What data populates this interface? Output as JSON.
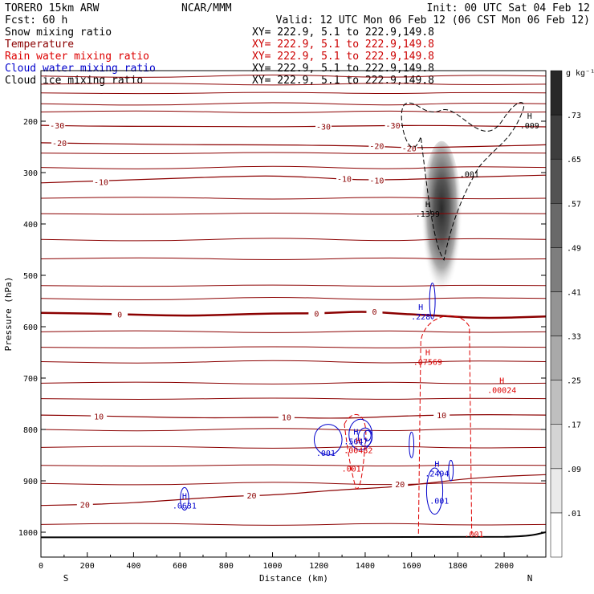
{
  "header": {
    "model": "TORERO  15km ARW",
    "fcst": "Fcst:   60 h",
    "center": "NCAR/MMM",
    "init": "Init: 00 UTC Sat 04 Feb 12",
    "valid": "Valid: 12 UTC Mon 06 Feb 12 (06 CST Mon 06 Feb 12)"
  },
  "fields": [
    {
      "name": "Snow mixing ratio",
      "color": "#000000",
      "xy": "XY= 222.9,  5.1 to 222.9,149.8"
    },
    {
      "name": "Temperature",
      "color": "#8b0000",
      "xy": "XY= 222.9,  5.1 to 222.9,149.8"
    },
    {
      "name": "Rain water mixing ratio",
      "color": "#dd0000",
      "xy": "XY= 222.9,  5.1 to 222.9,149.8"
    },
    {
      "name": "Cloud water mixing ratio",
      "color": "#0000cc",
      "xy": "XY= 222.9,  5.1 to 222.9,149.8"
    },
    {
      "name": "Cloud ice mixing ratio",
      "color": "#000000",
      "xy": "XY= 222.9,  5.1 to 222.9,149.8"
    }
  ],
  "chart_data": {
    "type": "cross-section",
    "xlabel": "Distance (km)",
    "ylabel": "Pressure (hPa)",
    "x_ticks": [
      "0",
      "200",
      "400",
      "600",
      "800",
      "1000",
      "1200",
      "1400",
      "1600",
      "1800",
      "2000"
    ],
    "y_ticks": [
      "200",
      "300",
      "400",
      "500",
      "600",
      "700",
      "800",
      "900",
      "1000"
    ],
    "xlim": [
      0,
      2180
    ],
    "ylim_hpa": [
      1050,
      100
    ],
    "endpoints": {
      "left": "S",
      "right": "N"
    },
    "colorbar": {
      "unit": "g kg⁻¹",
      "ticks": [
        ".01",
        ".09",
        ".17",
        ".25",
        ".33",
        ".41",
        ".49",
        ".57",
        ".65",
        ".73"
      ]
    },
    "isotherms": [
      {
        "label": "-30",
        "points": [
          [
            0,
            208
          ],
          [
            300,
            210
          ],
          [
            700,
            210
          ],
          [
            1000,
            211
          ],
          [
            1400,
            209
          ],
          [
            1700,
            208
          ],
          [
            2000,
            210
          ],
          [
            2180,
            211
          ]
        ],
        "labels_at": [
          [
            70,
            208
          ],
          [
            1220,
            210
          ],
          [
            1520,
            208
          ]
        ]
      },
      {
        "label": "-20",
        "points": [
          [
            0,
            242
          ],
          [
            300,
            244
          ],
          [
            700,
            246
          ],
          [
            1000,
            246
          ],
          [
            1400,
            248
          ],
          [
            1600,
            252
          ],
          [
            1800,
            250
          ],
          [
            2000,
            248
          ],
          [
            2180,
            246
          ]
        ],
        "labels_at": [
          [
            80,
            242
          ],
          [
            1450,
            248
          ],
          [
            1590,
            252
          ]
        ]
      },
      {
        "label": "-10",
        "points": [
          [
            0,
            320
          ],
          [
            400,
            314
          ],
          [
            800,
            308
          ],
          [
            1000,
            306
          ],
          [
            1200,
            310
          ],
          [
            1400,
            315
          ],
          [
            1700,
            312
          ],
          [
            1900,
            308
          ],
          [
            2180,
            305
          ]
        ],
        "labels_at": [
          [
            260,
            318
          ],
          [
            1310,
            312
          ],
          [
            1450,
            315
          ]
        ]
      },
      {
        "label": "0",
        "points": [
          [
            0,
            573
          ],
          [
            300,
            575
          ],
          [
            600,
            579
          ],
          [
            800,
            577
          ],
          [
            1000,
            574
          ],
          [
            1200,
            574
          ],
          [
            1400,
            570
          ],
          [
            1550,
            575
          ],
          [
            1700,
            578
          ],
          [
            1900,
            584
          ],
          [
            2180,
            580
          ]
        ],
        "labels_at": [
          [
            340,
            576
          ],
          [
            1190,
            574
          ],
          [
            1440,
            570
          ]
        ]
      },
      {
        "label": "10",
        "points": [
          [
            0,
            772
          ],
          [
            300,
            774
          ],
          [
            700,
            778
          ],
          [
            1000,
            776
          ],
          [
            1300,
            779
          ],
          [
            1600,
            773
          ],
          [
            1900,
            771
          ],
          [
            2180,
            772
          ]
        ],
        "labels_at": [
          [
            250,
            774
          ],
          [
            1060,
            776
          ],
          [
            1730,
            772
          ]
        ]
      },
      {
        "label": "20",
        "points": [
          [
            0,
            948
          ],
          [
            300,
            945
          ],
          [
            500,
            940
          ],
          [
            800,
            930
          ],
          [
            1000,
            928
          ],
          [
            1300,
            917
          ],
          [
            1500,
            913
          ],
          [
            1700,
            903
          ],
          [
            1900,
            893
          ],
          [
            2180,
            888
          ]
        ],
        "labels_at": [
          [
            190,
            946
          ],
          [
            910,
            928
          ],
          [
            1550,
            906
          ]
        ]
      }
    ],
    "extremes": [
      {
        "field": "Snow mixing ratio",
        "kind": "H",
        "value": ".1399",
        "x": 1670,
        "p": 380
      },
      {
        "field": "Cloud ice mixing ratio",
        "kind": "H",
        "value": ".009",
        "x": 2110,
        "p": 208
      },
      {
        "field": "Cloud ice mixing ratio",
        "kind": "min",
        "value": ".001",
        "x": 1850,
        "p": 302
      },
      {
        "field": "Cloud water mixing ratio",
        "kind": "H",
        "value": ".228",
        "x": 1640,
        "p": 580
      },
      {
        "field": "Cloud water mixing ratio",
        "kind": "H",
        "value": ".5647",
        "x": 1360,
        "p": 823
      },
      {
        "field": "Cloud water mixing ratio",
        "kind": "min",
        "value": ".001",
        "x": 1230,
        "p": 845
      },
      {
        "field": "Cloud water mixing ratio",
        "kind": "H",
        "value": ".2494",
        "x": 1710,
        "p": 885
      },
      {
        "field": "Cloud water mixing ratio",
        "kind": "min",
        "value": ".001",
        "x": 1720,
        "p": 938
      },
      {
        "field": "Cloud water mixing ratio",
        "kind": "H",
        "value": ".0631",
        "x": 620,
        "p": 948
      },
      {
        "field": "Rain water mixing ratio",
        "kind": "H",
        "value": ".07569",
        "x": 1670,
        "p": 668
      },
      {
        "field": "Rain water mixing ratio",
        "kind": "H",
        "value": ".00024",
        "x": 1990,
        "p": 723
      },
      {
        "field": "Rain water mixing ratio",
        "kind": "H",
        "value": ".00482",
        "x": 1370,
        "p": 840
      },
      {
        "field": "Rain water mixing ratio",
        "kind": "min",
        "value": ".001",
        "x": 1340,
        "p": 876
      },
      {
        "field": "Rain water mixing ratio",
        "kind": "min",
        "value": ".001",
        "x": 1870,
        "p": 1003
      }
    ],
    "snow_shading": {
      "x_range": [
        1640,
        1820
      ],
      "p_top": 270,
      "p_bottom": 600,
      "core_max": 0.14
    },
    "surface_pressure": [
      [
        0,
        1010
      ],
      [
        1900,
        1010
      ],
      [
        2100,
        1008
      ],
      [
        2180,
        1000
      ]
    ]
  }
}
